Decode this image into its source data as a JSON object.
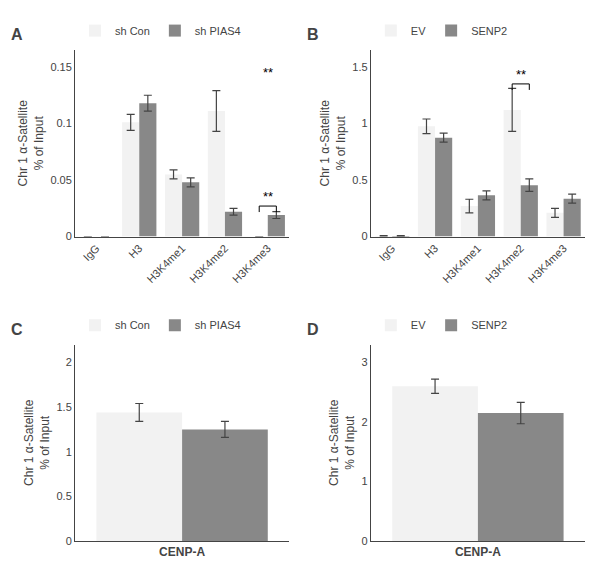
{
  "chart_data": [
    {
      "type": "bar",
      "title": "A",
      "categories": [
        "IgG",
        "H3",
        "H3K4me1",
        "H3K4me2",
        "H3K4me3"
      ],
      "series": [
        {
          "name": "sh Con",
          "color": "#f2f2f2",
          "values": [
            0.0,
            0.101,
            0.055,
            0.111,
            0.0
          ],
          "errors": [
            0.0,
            0.007,
            0.004,
            0.018,
            0.0
          ]
        },
        {
          "name": "sh PIAS4",
          "color": "#888888",
          "values": [
            0.0,
            0.118,
            0.048,
            0.022,
            0.019
          ],
          "errors": [
            0.0,
            0.007,
            0.004,
            0.003,
            0.003
          ]
        }
      ],
      "ylabel": "Chr 1 α-Satellite\n% of Input",
      "ylim": [
        0,
        0.165
      ],
      "yticks": [
        0,
        0.05,
        0.1,
        0.15
      ],
      "grid": false,
      "legend": "upper left",
      "annotations": [
        {
          "text": "**",
          "x": "H3K4me3",
          "y": 0.137
        },
        {
          "text": "**",
          "x": "H3K4me3",
          "y": 0.027,
          "marker": "bracket"
        }
      ]
    },
    {
      "type": "bar",
      "title": "B",
      "categories": [
        "IgG",
        "H3",
        "H3K4me1",
        "H3K4me2",
        "H3K4me3"
      ],
      "series": [
        {
          "name": "EV",
          "color": "#f2f2f2",
          "values": [
            0.005,
            0.975,
            0.27,
            1.12,
            0.21
          ],
          "errors": [
            0.003,
            0.065,
            0.06,
            0.19,
            0.04
          ]
        },
        {
          "name": "SENP2",
          "color": "#888888",
          "values": [
            0.005,
            0.875,
            0.365,
            0.455,
            0.335
          ],
          "errors": [
            0.003,
            0.04,
            0.04,
            0.055,
            0.04
          ]
        }
      ],
      "ylabel": "Chr 1 α-Satellite\n% of Input",
      "ylim": [
        0,
        1.65
      ],
      "yticks": [
        0,
        0.5,
        1,
        1.5
      ],
      "grid": false,
      "legend": "upper left",
      "annotations": [
        {
          "text": "**",
          "x": "H3K4me2",
          "y": 1.35,
          "marker": "bracket"
        }
      ]
    },
    {
      "type": "bar",
      "title": "C",
      "categories": [
        "CENP-A"
      ],
      "series": [
        {
          "name": "sh Con",
          "color": "#f2f2f2",
          "values": [
            1.44
          ],
          "errors": [
            0.1
          ]
        },
        {
          "name": "sh PIAS4",
          "color": "#888888",
          "values": [
            1.25
          ],
          "errors": [
            0.09
          ]
        }
      ],
      "ylabel": "Chr 1 α-Satellite\n% of Input",
      "ylim": [
        0,
        2.2
      ],
      "yticks": [
        0,
        0.5,
        1,
        1.5,
        2
      ],
      "grid": false,
      "legend": "upper left"
    },
    {
      "type": "bar",
      "title": "D",
      "categories": [
        "CENP-A"
      ],
      "series": [
        {
          "name": "EV",
          "color": "#f2f2f2",
          "values": [
            2.6
          ],
          "errors": [
            0.12
          ]
        },
        {
          "name": "SENP2",
          "color": "#888888",
          "values": [
            2.15
          ],
          "errors": [
            0.18
          ]
        }
      ],
      "ylabel": "Chr 1 α-Satellite\n% of Input",
      "ylim": [
        0,
        3.3
      ],
      "yticks": [
        0,
        1,
        2,
        3
      ],
      "grid": false,
      "legend": "upper left"
    }
  ]
}
